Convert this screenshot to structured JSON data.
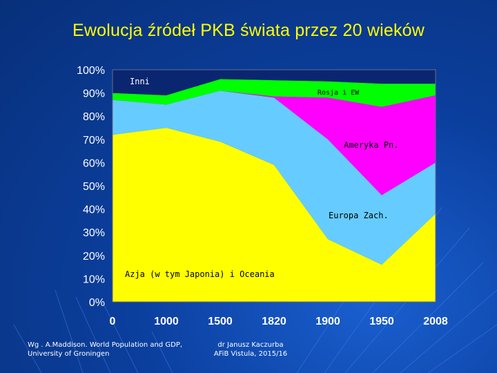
{
  "slide": {
    "title": "Ewolucja źródeł PKB świata przez 20 wieków",
    "source_text": "Wg . A.Maddison. World Population and GDP, University of Groningen",
    "author_line1": "dr Janusz Kaczurba",
    "author_line2": "AFiB Vistula, 2015/16"
  },
  "chart_data": {
    "type": "area",
    "stacked": true,
    "percent": true,
    "x": [
      "0",
      "1000",
      "1500",
      "1820",
      "1900",
      "1950",
      "2008"
    ],
    "ylim": [
      0,
      100
    ],
    "yticks": [
      "0%",
      "10%",
      "20%",
      "30%",
      "40%",
      "50%",
      "60%",
      "70%",
      "80%",
      "90%",
      "100%"
    ],
    "series": [
      {
        "name": "Azja (w tym Japonia) i Oceania",
        "values": [
          72,
          75,
          69,
          59,
          27,
          16,
          38
        ],
        "color": "#ffff00"
      },
      {
        "name": "Europa Zach.",
        "values": [
          15,
          10,
          22,
          29,
          43,
          30,
          22
        ],
        "color": "#66ccff"
      },
      {
        "name": "Ameryka Pn.",
        "values": [
          0,
          0,
          0,
          0.5,
          18,
          38,
          29
        ],
        "color": "#ff00ff"
      },
      {
        "name": "Rosja i EW",
        "values": [
          3,
          4,
          5,
          7,
          7,
          10,
          5
        ],
        "color": "#00ff00"
      },
      {
        "name": "Inni",
        "values": [
          10,
          11,
          4,
          4.5,
          5,
          6,
          6
        ],
        "color": "#0a2670"
      }
    ],
    "labels": {
      "inni": "Inni",
      "rosja": "Rosja i EW",
      "ameryka": "Ameryka Pn.",
      "europa": "Europa Zach.",
      "azja": "Azja (w tym Japonia) i Oceania"
    }
  }
}
